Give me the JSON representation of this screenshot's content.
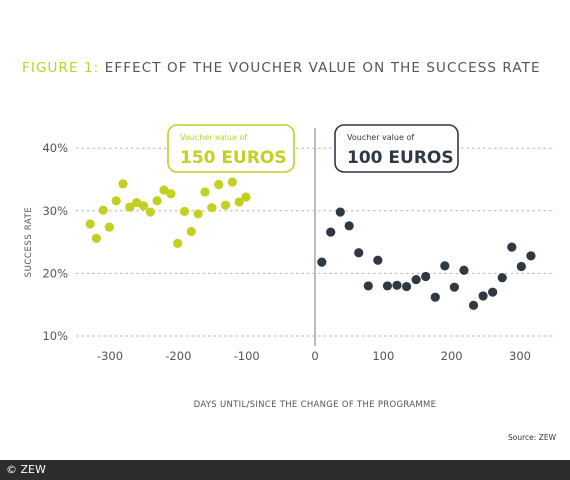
{
  "heading": {
    "figure_label": "FIGURE 1:",
    "title": "EFFECT OF THE VOUCHER VALUE ON THE SUCCESS RATE"
  },
  "source": "Source: ZEW",
  "copyright": "© ZEW",
  "colors": {
    "before": "#c3cf21",
    "after": "#2f3843",
    "divider": "#bbbbbb",
    "grid": "#b5b5b5",
    "text": "#555555"
  },
  "chart_data": {
    "type": "scatter",
    "title": "",
    "xlabel": "DAYS UNTIL/SINCE THE CHANGE OF THE PROGRAMME",
    "ylabel": "SUCCESS RATE",
    "xlim": [
      -355,
      355
    ],
    "ylim": [
      8,
      44
    ],
    "x_ticks": [
      -300,
      -200,
      -100,
      0,
      100,
      200,
      300
    ],
    "x_tick_labels": [
      "-300",
      "-200",
      "-100",
      "0",
      "100",
      "200",
      "300"
    ],
    "y_ticks": [
      10,
      20,
      30,
      40
    ],
    "y_tick_labels": [
      "10%",
      "20%",
      "30%",
      "40%"
    ],
    "grid": "horizontal dashed",
    "divider_x": 0,
    "series": [
      {
        "annotation_line1": "Voucher value of",
        "annotation_line2": "150 EUROS",
        "points": [
          [
            -329,
            27.9
          ],
          [
            -320,
            25.6
          ],
          [
            -310,
            30.1
          ],
          [
            -301,
            27.4
          ],
          [
            -291,
            31.6
          ],
          [
            -281,
            34.3
          ],
          [
            -271,
            30.6
          ],
          [
            -261,
            31.3
          ],
          [
            -251,
            30.8
          ],
          [
            -241,
            29.8
          ],
          [
            -231,
            31.6
          ],
          [
            -221,
            33.3
          ],
          [
            -211,
            32.7
          ],
          [
            -201,
            24.8
          ],
          [
            -191,
            29.9
          ],
          [
            -181,
            26.7
          ],
          [
            -171,
            29.5
          ],
          [
            -161,
            33.0
          ],
          [
            -151,
            30.5
          ],
          [
            -141,
            34.2
          ],
          [
            -131,
            30.9
          ],
          [
            -121,
            34.6
          ],
          [
            -111,
            31.4
          ],
          [
            -101,
            32.2
          ]
        ]
      },
      {
        "annotation_line1": "Voucher value of",
        "annotation_line2": "100 EUROS",
        "points": [
          [
            10,
            21.8
          ],
          [
            23,
            26.6
          ],
          [
            37,
            29.8
          ],
          [
            50,
            27.6
          ],
          [
            64,
            23.3
          ],
          [
            78,
            18.0
          ],
          [
            92,
            22.1
          ],
          [
            106,
            18.0
          ],
          [
            120,
            18.1
          ],
          [
            134,
            17.9
          ],
          [
            148,
            19.0
          ],
          [
            162,
            19.5
          ],
          [
            176,
            16.2
          ],
          [
            190,
            21.2
          ],
          [
            204,
            17.8
          ],
          [
            218,
            20.5
          ],
          [
            232,
            14.9
          ],
          [
            246,
            16.4
          ],
          [
            260,
            17.0
          ],
          [
            274,
            19.3
          ],
          [
            288,
            24.2
          ],
          [
            302,
            21.1
          ],
          [
            316,
            22.8
          ]
        ]
      }
    ]
  }
}
